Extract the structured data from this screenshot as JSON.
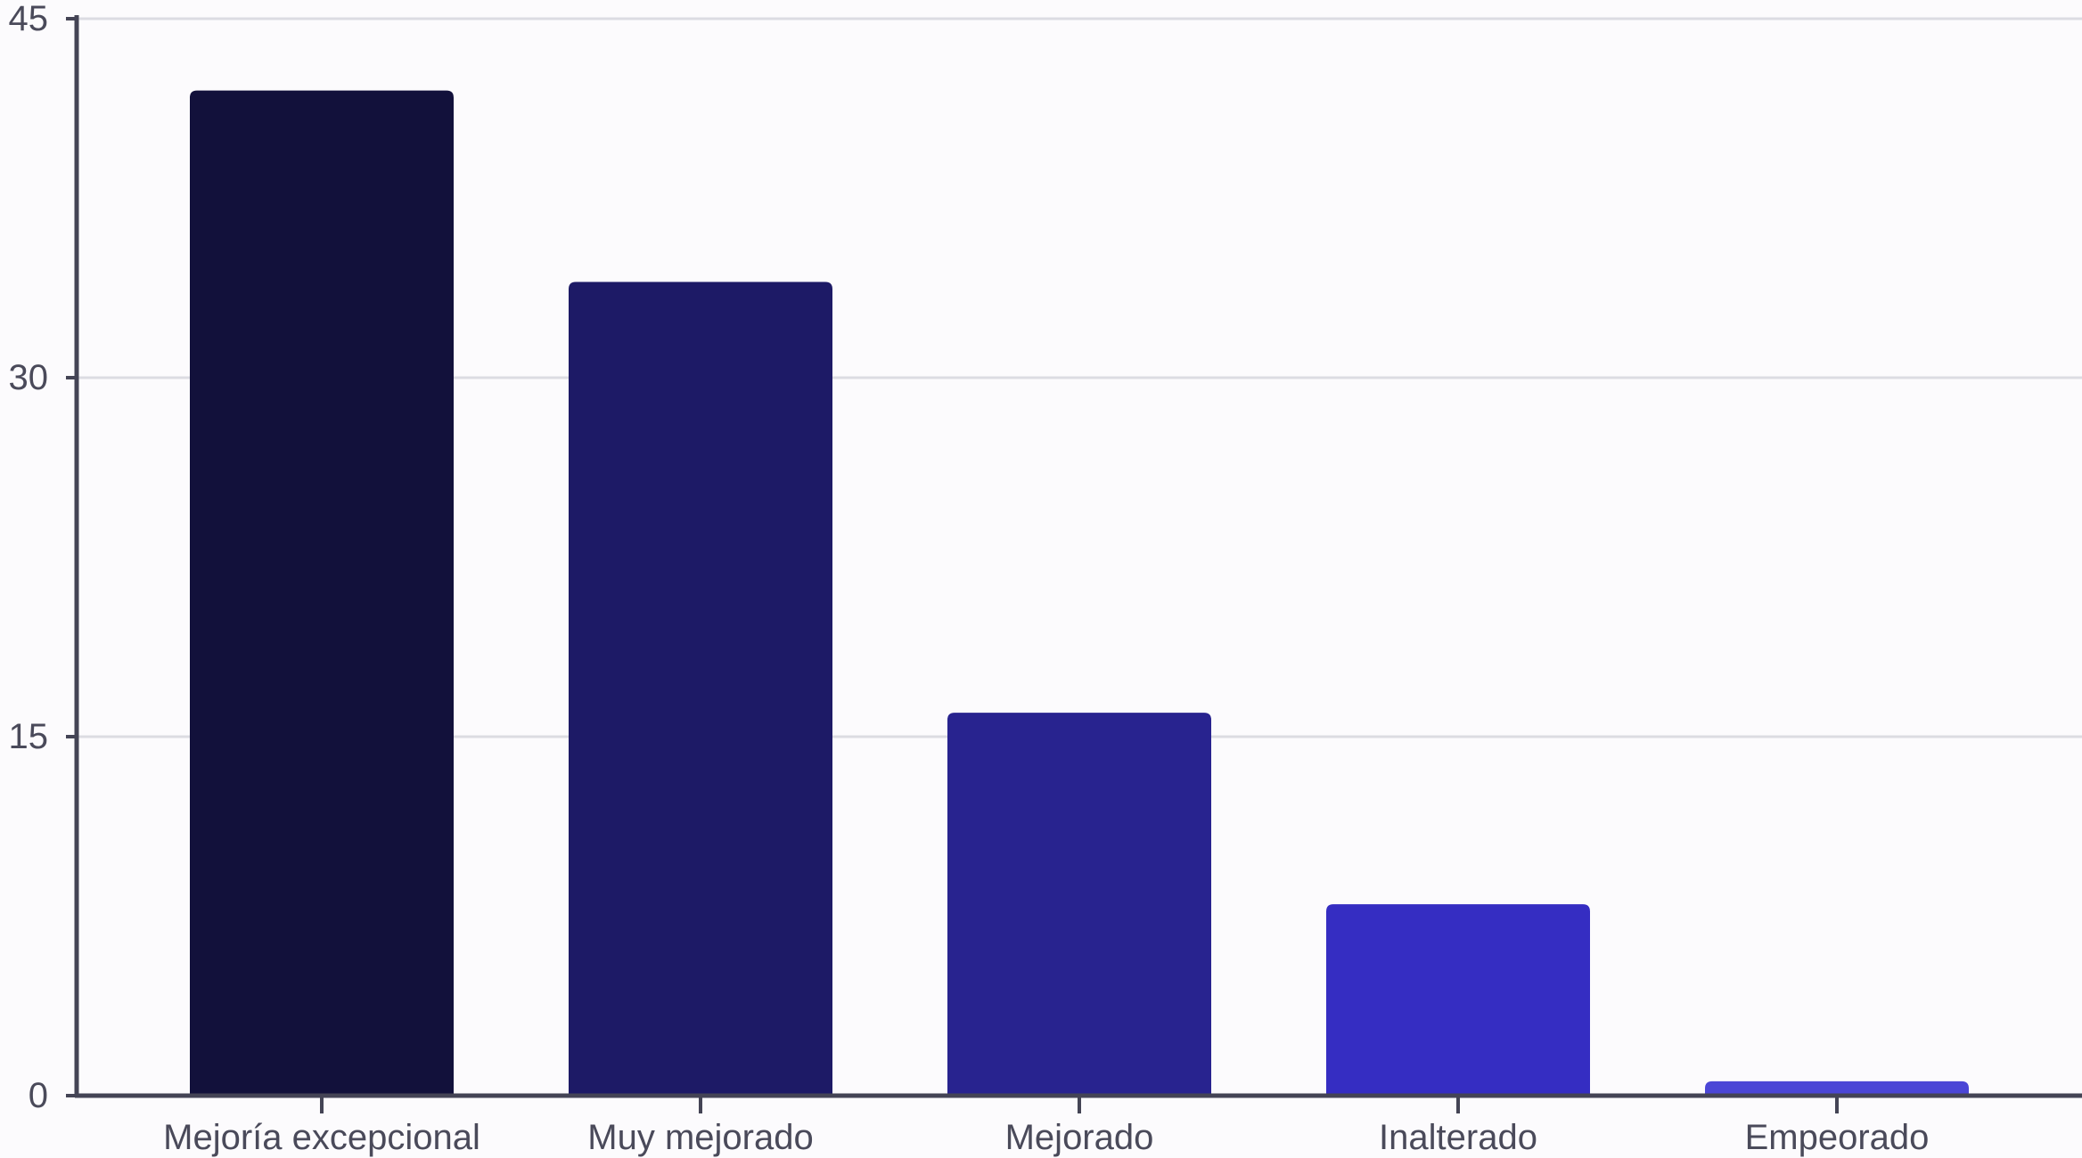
{
  "chart_data": {
    "type": "bar",
    "title": "",
    "xlabel": "",
    "ylabel": "",
    "categories": [
      "Mejoría excepcional",
      "Muy mejorado",
      "Mejorado",
      "Inalterado",
      "Empeorado"
    ],
    "values": [
      42,
      34,
      16,
      8,
      0.6
    ],
    "ylim": [
      0,
      45
    ],
    "yticks": [
      0,
      15,
      30,
      45
    ],
    "grid": true,
    "legend": "none",
    "colors": [
      "#12113b",
      "#1d1a66",
      "#28238f",
      "#352dc2",
      "#4b46d6"
    ],
    "axis_color": "#444455",
    "grid_color": "#dcdce2",
    "background": "#fcfbfd"
  }
}
